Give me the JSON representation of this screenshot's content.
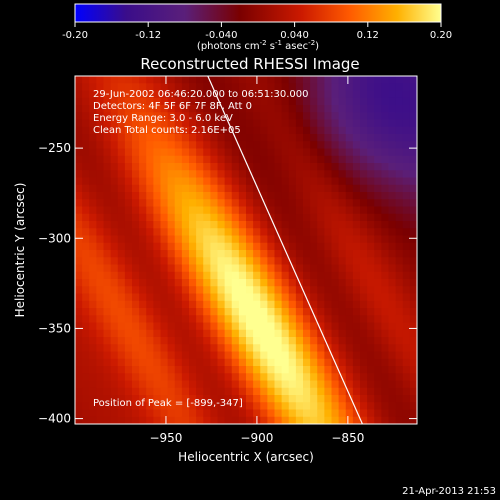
{
  "chart_data": {
    "type": "heatmap",
    "title": "Reconstructed RHESSI Image",
    "colorbar": {
      "ticks": [
        "-0.20",
        "-0.12",
        "-0.040",
        "0.040",
        "0.12",
        "0.20"
      ],
      "range": [
        -0.2,
        0.2
      ],
      "units_main": "(photons cm",
      "units_exp1": "-2",
      "units_mid": " s",
      "units_exp2": "-1",
      "units_after": " asec",
      "units_exp3": "-2",
      "units_close": ")",
      "colors": [
        "#0000ff",
        "#3a0d8a",
        "#5a1f7a",
        "#7a0000",
        "#cc1a00",
        "#ff5a00",
        "#ffb000",
        "#ffff90"
      ]
    },
    "xlabel": "Heliocentric X (arcsec)",
    "ylabel": "Heliocentric Y (arcsec)",
    "xlim": [
      -1000,
      -812
    ],
    "ylim": [
      -403,
      -210
    ],
    "xticks": [
      -950,
      -900,
      -850
    ],
    "yticks": [
      -250,
      -300,
      -350,
      -400
    ],
    "annotations": {
      "line1": "29-Jun-2002 06:46:20.000 to 06:51:30.000",
      "line2": "Detectors: 4F 5F 6F 7F 8F, Att 0",
      "line3": "Energy Range: 3.0 - 6.0 keV",
      "line4": "Clean     Total counts: 2.16E+05",
      "peak": "Position of Peak = [-899,-347]"
    },
    "peak": {
      "x": -899,
      "y": -347
    },
    "limb_line": [
      [
        -927,
        -210
      ],
      [
        -842,
        -403
      ]
    ],
    "timestamp": "21-Apr-2013 21:53"
  }
}
